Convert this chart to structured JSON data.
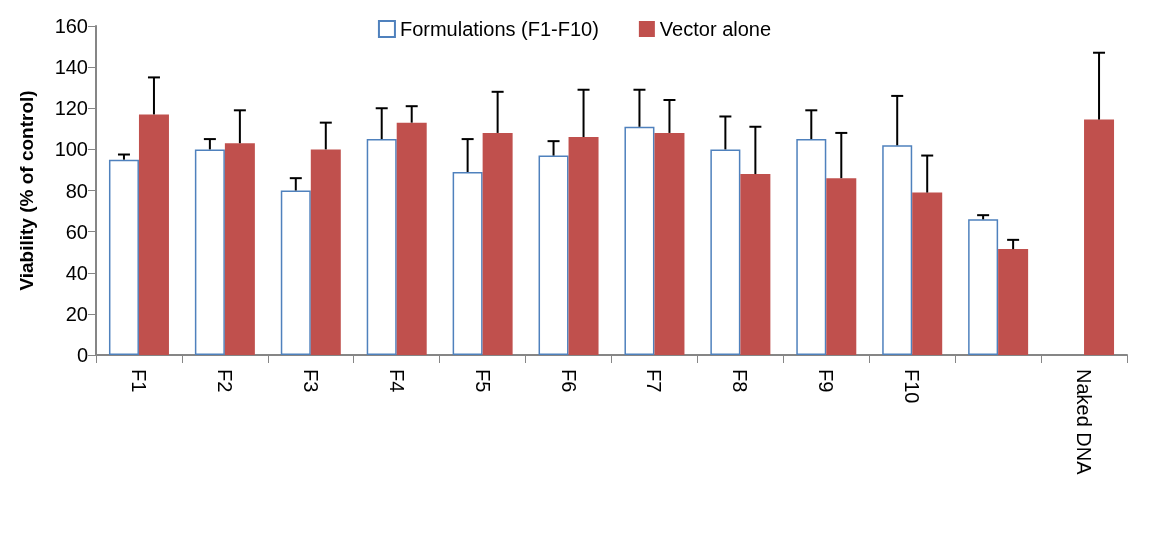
{
  "chart_data": {
    "type": "bar",
    "ylabel": "Viability (% of control)",
    "categories": [
      "F1",
      "F2",
      "F3",
      "F4",
      "F5",
      "F6",
      "F7",
      "F8",
      "F9",
      "F10",
      null,
      "Naked DNA"
    ],
    "series": [
      {
        "name": "Formulations (F1-F10)",
        "color": "#4f81bd",
        "values": [
          95,
          100,
          80,
          105,
          89,
          97,
          111,
          100,
          105,
          102,
          66,
          null
        ],
        "errors": [
          [
            95,
            97.5
          ],
          [
            100,
            105
          ],
          [
            80,
            86
          ],
          [
            105,
            120
          ],
          [
            89,
            105
          ],
          [
            97,
            104
          ],
          [
            111,
            129
          ],
          [
            100,
            116
          ],
          [
            105,
            119
          ],
          [
            102,
            126
          ],
          [
            66,
            68
          ],
          null
        ]
      },
      {
        "name": "Vector alone",
        "color": "#c0504d",
        "values": [
          117,
          103,
          100,
          113,
          108,
          106,
          108,
          88,
          86,
          79,
          51.5,
          114.5
        ],
        "errors": [
          [
            117,
            135
          ],
          [
            103,
            119
          ],
          [
            100,
            113
          ],
          [
            113,
            121
          ],
          [
            108,
            128
          ],
          [
            106,
            129
          ],
          [
            108,
            124
          ],
          [
            88,
            111
          ],
          [
            86,
            108
          ],
          [
            79,
            97
          ],
          [
            51.5,
            56
          ],
          [
            114.5,
            147
          ]
        ]
      }
    ],
    "ylim": [
      0,
      160
    ],
    "yticks": [
      0,
      20,
      40,
      60,
      80,
      100,
      120,
      140,
      160
    ],
    "grid": false,
    "legend": "top"
  }
}
